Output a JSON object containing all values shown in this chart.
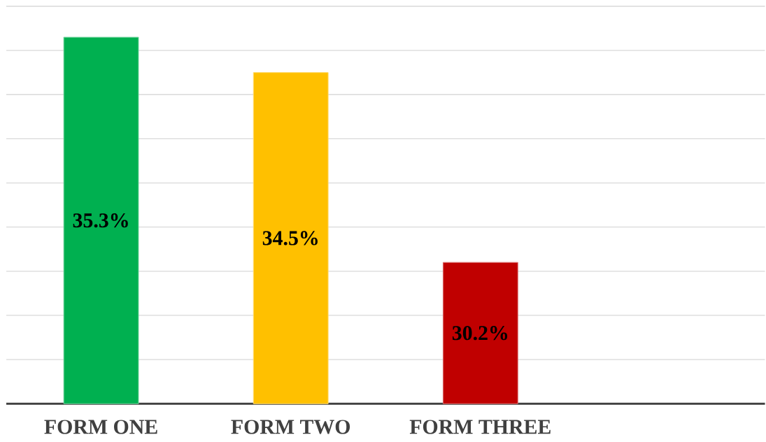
{
  "chart_data": {
    "type": "bar",
    "categories": [
      "FORM ONE",
      "FORM TWO",
      "FORM THREE"
    ],
    "values": [
      35.3,
      34.5,
      30.2
    ],
    "colors": [
      "#00b050",
      "#ffc000",
      "#c00000"
    ],
    "value_labels": [
      "35.3%",
      "34.5%",
      "30.2%"
    ],
    "ylim": [
      27,
      36
    ],
    "yticks": [
      {
        "value": 27,
        "label": null
      },
      {
        "value": 28,
        "label": null
      },
      {
        "value": 29,
        "label": null
      },
      {
        "value": 30,
        "label": null
      },
      {
        "value": 31,
        "label": null
      },
      {
        "value": 32,
        "label": null
      },
      {
        "value": 33,
        "label": null
      },
      {
        "value": 34,
        "label": null
      },
      {
        "value": 35,
        "label": null
      },
      {
        "value": 36,
        "label": null
      }
    ],
    "grid": "y",
    "tick_labels": "x"
  }
}
